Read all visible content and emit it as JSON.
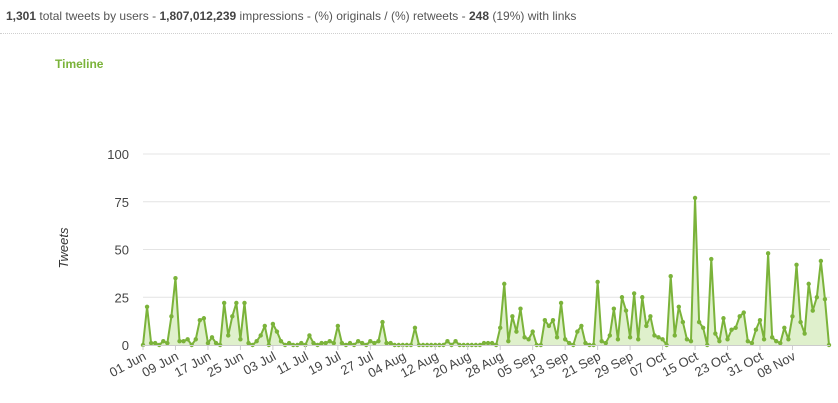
{
  "summary": {
    "total_tweets": "1,301",
    "total_tweets_label": "total tweets by users",
    "sep1": "-",
    "impressions": "1,807,012,239",
    "impressions_label": "impressions",
    "sep2": "-",
    "orig_rt_label": "(%) originals / (%) retweets",
    "sep3": "-",
    "links_count": "248",
    "links_label": "(19%) with links"
  },
  "section": {
    "title": "Timeline"
  },
  "colors": {
    "accent": "#7bb33a",
    "fill": "#dff0cc",
    "grid": "#e4e4e4",
    "axis": "#cccccc"
  },
  "chart_data": {
    "type": "area",
    "ylabel": "Tweets",
    "ylim": [
      0,
      100
    ],
    "yticks": [
      0,
      25,
      50,
      75,
      100
    ],
    "xtick_labels": [
      "01 Jun",
      "09 Jun",
      "17 Jun",
      "25 Jun",
      "03 Jul",
      "11 Jul",
      "19 Jul",
      "27 Jul",
      "04 Aug",
      "12 Aug",
      "20 Aug",
      "28 Aug",
      "05 Sep",
      "13 Sep",
      "21 Sep",
      "29 Sep",
      "07 Oct",
      "15 Oct",
      "23 Oct",
      "31 Oct",
      "08 Nov"
    ],
    "grid": true,
    "legend": "none",
    "x_start": "01 Jun",
    "x_end": "12 Nov",
    "series": [
      {
        "values": [
          0,
          20,
          1,
          1,
          0,
          2,
          1,
          15,
          35,
          2,
          2,
          3,
          0,
          3,
          13,
          14,
          1,
          4,
          1,
          0,
          22,
          5,
          15,
          22,
          3,
          22,
          1,
          0,
          2,
          5,
          10,
          0,
          11,
          7,
          2,
          0,
          1,
          0,
          0,
          1,
          0,
          5,
          1,
          0,
          1,
          1,
          2,
          1,
          10,
          1,
          0,
          1,
          0,
          2,
          1,
          0,
          2,
          1,
          2,
          12,
          1,
          1,
          0,
          0,
          0,
          0,
          0,
          9,
          0,
          0,
          0,
          0,
          0,
          0,
          0,
          2,
          0,
          2,
          0,
          0,
          0,
          0,
          0,
          0,
          1,
          1,
          1,
          0,
          9,
          32,
          2,
          15,
          7,
          19,
          4,
          3,
          7,
          0,
          0,
          13,
          10,
          13,
          4,
          22,
          3,
          1,
          0,
          7,
          10,
          1,
          0,
          0,
          33,
          2,
          1,
          5,
          19,
          3,
          25,
          18,
          4,
          27,
          3,
          25,
          10,
          15,
          5,
          4,
          3,
          0,
          36,
          5,
          20,
          12,
          3,
          2,
          77,
          12,
          9,
          0,
          45,
          6,
          2,
          14,
          3,
          8,
          9,
          15,
          17,
          2,
          1,
          8,
          13,
          3,
          48,
          4,
          2,
          1,
          9,
          3,
          15,
          42,
          12,
          6,
          32,
          18,
          25,
          44,
          24,
          0
        ]
      }
    ]
  }
}
